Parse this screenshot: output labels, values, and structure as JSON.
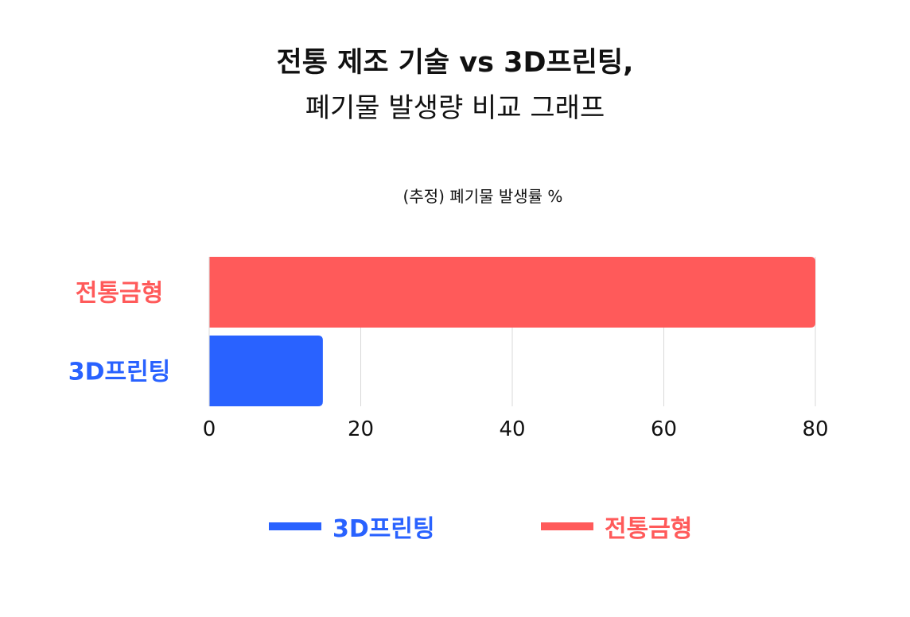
{
  "title": {
    "line1": "전통 제조 기술 vs 3D프린팅,",
    "line2": "폐기물 발생량 비교 그래프"
  },
  "subtitle": "(추정) 폐기물 발생률 %",
  "colors": {
    "traditional": "#FF5A5A",
    "printing": "#2962FF",
    "grid": "#D9D9D9",
    "axis_text": "#111111"
  },
  "chart_data": {
    "type": "bar",
    "orientation": "horizontal",
    "categories": [
      "전통금형",
      "3D프린팅"
    ],
    "series": [
      {
        "values": [
          80,
          15
        ]
      }
    ],
    "xlim": [
      0,
      80
    ],
    "xticks": [
      0,
      20,
      40,
      60,
      80
    ],
    "xtick_labels": [
      "0",
      "20",
      "40",
      "60",
      "80"
    ],
    "grid": true,
    "legend": {
      "position": "bottom",
      "items": [
        {
          "label": "3D프린팅",
          "color": "#2962FF"
        },
        {
          "label": "전통금형",
          "color": "#FF5A5A"
        }
      ]
    }
  }
}
